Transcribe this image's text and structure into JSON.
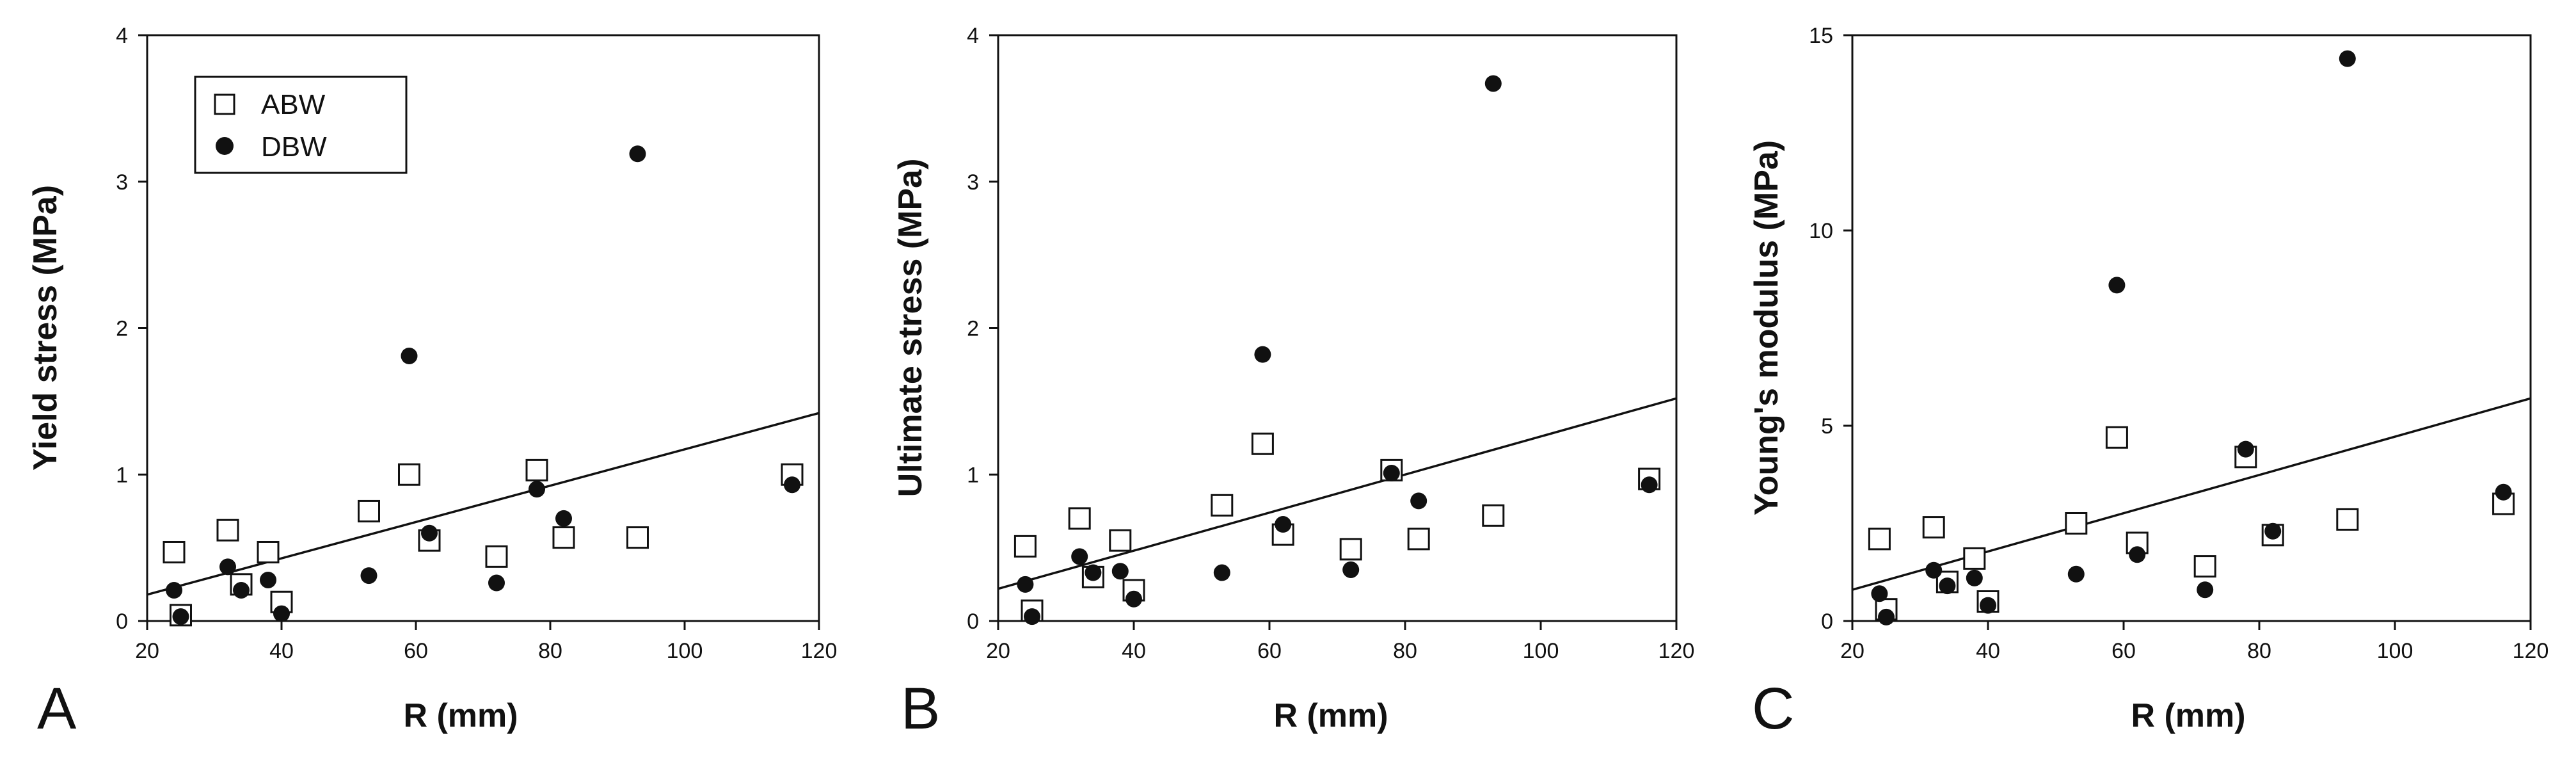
{
  "chart_data": [
    {
      "type": "scatter",
      "panel_label": "A",
      "xlabel": "R (mm)",
      "ylabel": "Yield stress (MPa)",
      "xlim": [
        20,
        120
      ],
      "ylim": [
        0,
        4
      ],
      "xticks": [
        "20",
        "40",
        "60",
        "80",
        "100",
        "120"
      ],
      "yticks": [
        "0",
        "1",
        "2",
        "3",
        "4"
      ],
      "legend": {
        "placement": "top-left",
        "entries": [
          "ABW",
          "DBW"
        ]
      },
      "fit_line": {
        "x": [
          20,
          120
        ],
        "y": [
          0.18,
          1.42
        ]
      },
      "series": [
        {
          "name": "ABW",
          "marker": "open-square",
          "x": [
            24,
            25,
            32,
            34,
            38,
            40,
            53,
            59,
            62,
            72,
            78,
            82,
            93,
            116
          ],
          "y": [
            0.47,
            0.04,
            0.62,
            0.25,
            0.47,
            0.13,
            0.75,
            1.0,
            0.55,
            0.44,
            1.03,
            0.57,
            0.57,
            1.0
          ]
        },
        {
          "name": "DBW",
          "marker": "filled-circle",
          "x": [
            24,
            25,
            32,
            34,
            38,
            40,
            53,
            59,
            62,
            72,
            78,
            82,
            93,
            116
          ],
          "y": [
            0.21,
            0.03,
            0.37,
            0.21,
            0.28,
            0.05,
            0.31,
            1.81,
            0.6,
            0.26,
            0.9,
            0.7,
            3.19,
            0.93
          ]
        }
      ]
    },
    {
      "type": "scatter",
      "panel_label": "B",
      "xlabel": "R (mm)",
      "ylabel": "Ultimate stress (MPa)",
      "xlim": [
        20,
        120
      ],
      "ylim": [
        0,
        4
      ],
      "xticks": [
        "20",
        "40",
        "60",
        "80",
        "100",
        "120"
      ],
      "yticks": [
        "0",
        "1",
        "2",
        "3",
        "4"
      ],
      "fit_line": {
        "x": [
          20,
          120
        ],
        "y": [
          0.22,
          1.52
        ]
      },
      "series": [
        {
          "name": "ABW",
          "marker": "open-square",
          "x": [
            24,
            25,
            32,
            34,
            38,
            40,
            53,
            59,
            62,
            72,
            78,
            82,
            93,
            116
          ],
          "y": [
            0.51,
            0.07,
            0.7,
            0.3,
            0.55,
            0.21,
            0.79,
            1.21,
            0.59,
            0.49,
            1.03,
            0.56,
            0.72,
            0.97
          ]
        },
        {
          "name": "DBW",
          "marker": "filled-circle",
          "x": [
            24,
            25,
            32,
            34,
            38,
            40,
            53,
            59,
            62,
            72,
            78,
            82,
            93,
            116
          ],
          "y": [
            0.25,
            0.03,
            0.44,
            0.33,
            0.34,
            0.15,
            0.33,
            1.82,
            0.66,
            0.35,
            1.01,
            0.82,
            3.67,
            0.93
          ]
        }
      ]
    },
    {
      "type": "scatter",
      "panel_label": "C",
      "xlabel": "R (mm)",
      "ylabel": "Young's modulus (MPa)",
      "xlim": [
        20,
        120
      ],
      "ylim": [
        0,
        15
      ],
      "xticks": [
        "20",
        "40",
        "60",
        "80",
        "100",
        "120"
      ],
      "yticks": [
        "0",
        "5",
        "10",
        "15"
      ],
      "fit_line": {
        "x": [
          20,
          120
        ],
        "y": [
          0.8,
          5.7
        ]
      },
      "series": [
        {
          "name": "ABW",
          "marker": "open-square",
          "x": [
            24,
            25,
            32,
            34,
            38,
            40,
            53,
            59,
            62,
            72,
            78,
            82,
            93,
            116
          ],
          "y": [
            2.1,
            0.3,
            2.4,
            1.0,
            1.6,
            0.5,
            2.5,
            4.7,
            2.0,
            1.4,
            4.2,
            2.2,
            2.6,
            3.0
          ]
        },
        {
          "name": "DBW",
          "marker": "filled-circle",
          "x": [
            24,
            25,
            32,
            34,
            38,
            40,
            53,
            59,
            62,
            72,
            78,
            82,
            93,
            116
          ],
          "y": [
            0.7,
            0.1,
            1.3,
            0.9,
            1.1,
            0.4,
            1.2,
            8.6,
            1.7,
            0.8,
            4.4,
            2.3,
            14.4,
            3.3
          ]
        }
      ]
    }
  ]
}
